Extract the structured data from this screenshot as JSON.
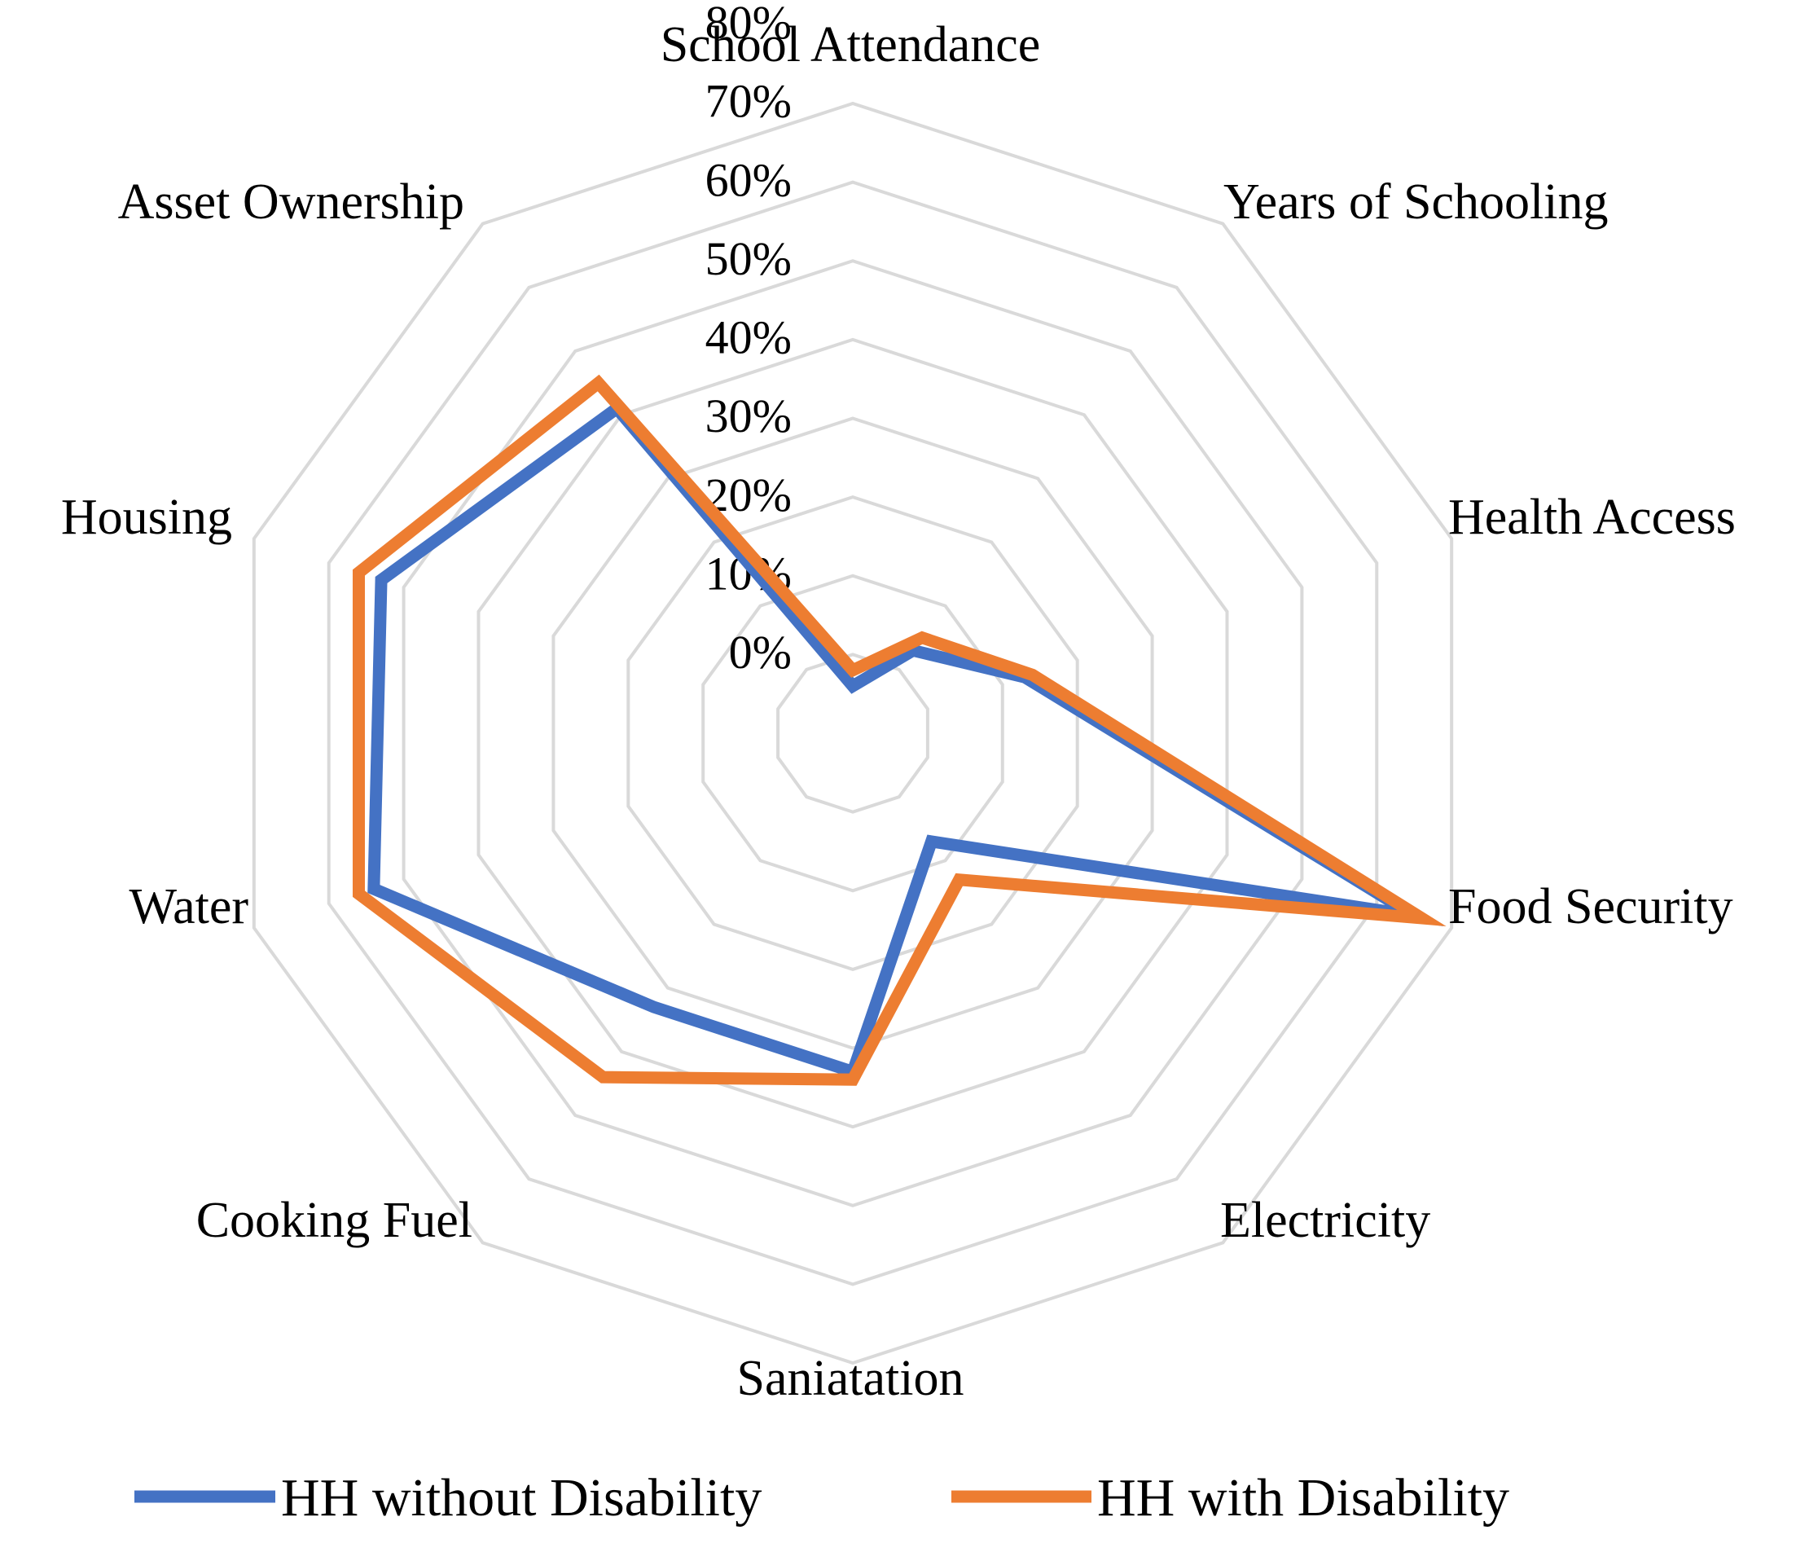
{
  "chart_data": {
    "type": "radar",
    "categories": [
      "School Attendance",
      "Years of Schooling",
      "Health Access",
      "Food Security",
      "Electricity",
      "Saniatation",
      "Cooking Fuel",
      "Water",
      "Housing",
      "Asset Ownership"
    ],
    "r_ticks": [
      "0%",
      "10%",
      "20%",
      "30%",
      "40%",
      "50%",
      "60%",
      "70%",
      "80%"
    ],
    "rlim": [
      0,
      80
    ],
    "series": [
      {
        "name": "HH without Disability",
        "color": "#4472C4",
        "values": [
          6,
          13,
          23,
          75,
          17,
          43,
          43,
          64,
          63,
          51
        ]
      },
      {
        "name": "HH with Disability",
        "color": "#ED7D31",
        "values": [
          8,
          15,
          24,
          76,
          23,
          44,
          54,
          66,
          66,
          55
        ]
      }
    ],
    "legend_position": "bottom"
  }
}
